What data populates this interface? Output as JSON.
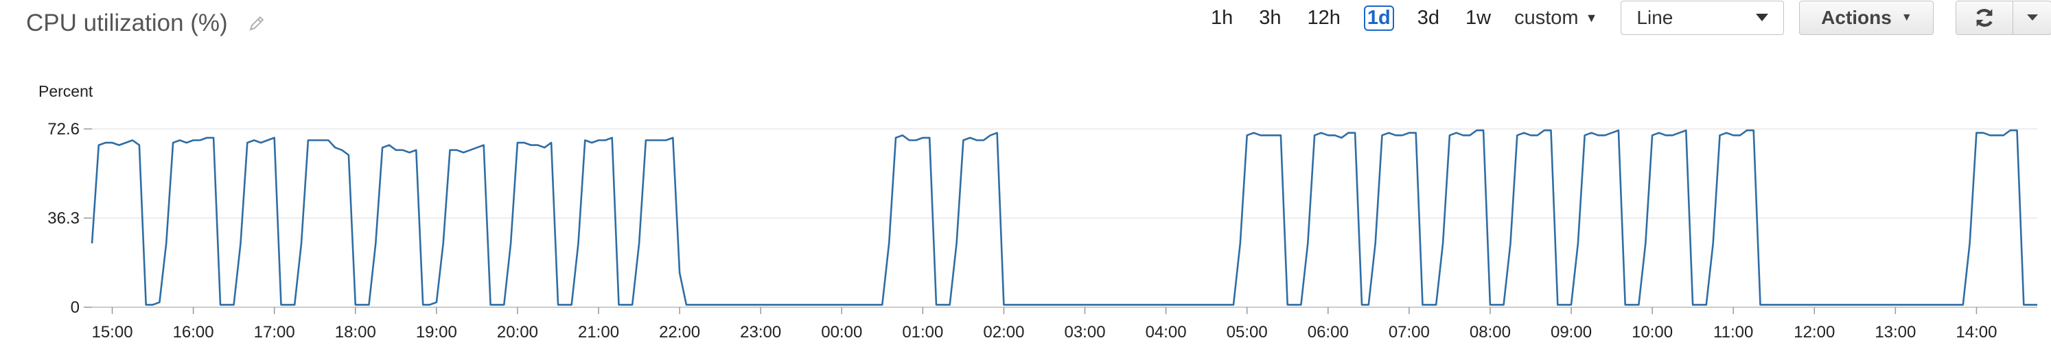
{
  "header": {
    "title": "CPU utilization (%)",
    "edit_icon": "pencil-icon"
  },
  "toolbar": {
    "ranges": [
      "1h",
      "3h",
      "12h",
      "1d",
      "3d",
      "1w"
    ],
    "active_range": "1d",
    "custom_label": "custom",
    "view_select_value": "Line",
    "actions_label": "Actions",
    "refresh_icon": "refresh-icon",
    "help_icon": "help-icon"
  },
  "colors": {
    "series": "#2e6da4",
    "active": "#1b66c9",
    "grid": "#e8e8e8"
  },
  "chart_data": {
    "type": "line",
    "ylabel": "Percent",
    "ylim": [
      0,
      72.6
    ],
    "yticks": [
      0,
      36.3,
      72.6
    ],
    "xlim": [
      0,
      1440
    ],
    "xticks": [
      {
        "x": 15,
        "label": "15:00"
      },
      {
        "x": 75,
        "label": "16:00"
      },
      {
        "x": 135,
        "label": "17:00"
      },
      {
        "x": 195,
        "label": "18:00"
      },
      {
        "x": 255,
        "label": "19:00"
      },
      {
        "x": 315,
        "label": "20:00"
      },
      {
        "x": 375,
        "label": "21:00"
      },
      {
        "x": 435,
        "label": "22:00"
      },
      {
        "x": 495,
        "label": "23:00"
      },
      {
        "x": 555,
        "label": "00:00"
      },
      {
        "x": 615,
        "label": "01:00"
      },
      {
        "x": 675,
        "label": "02:00"
      },
      {
        "x": 735,
        "label": "03:00"
      },
      {
        "x": 795,
        "label": "04:00"
      },
      {
        "x": 855,
        "label": "05:00"
      },
      {
        "x": 915,
        "label": "06:00"
      },
      {
        "x": 975,
        "label": "07:00"
      },
      {
        "x": 1035,
        "label": "08:00"
      },
      {
        "x": 1095,
        "label": "09:00"
      },
      {
        "x": 1155,
        "label": "10:00"
      },
      {
        "x": 1215,
        "label": "11:00"
      },
      {
        "x": 1275,
        "label": "12:00"
      },
      {
        "x": 1335,
        "label": "13:00"
      },
      {
        "x": 1395,
        "label": "14:00"
      }
    ],
    "grid": true,
    "series": [
      {
        "x": [
          0,
          5,
          10,
          15,
          20,
          25,
          30,
          35,
          40,
          45,
          50,
          55,
          60,
          65,
          70,
          75,
          80,
          85,
          90,
          95,
          100,
          105,
          110,
          115,
          120,
          125,
          130,
          135,
          140,
          145,
          150,
          155,
          160,
          165,
          170,
          175,
          180,
          185,
          190,
          195,
          200,
          205,
          210,
          215,
          220,
          225,
          230,
          235,
          240,
          245,
          250,
          255,
          260,
          265,
          270,
          275,
          280,
          285,
          290,
          295,
          300,
          305,
          310,
          315,
          320,
          325,
          330,
          335,
          340,
          345,
          350,
          355,
          360,
          365,
          370,
          375,
          380,
          385,
          390,
          395,
          400,
          405,
          410,
          415,
          420,
          425,
          430,
          435,
          440,
          445,
          450,
          455,
          460,
          465,
          470,
          475,
          480,
          485,
          490,
          495,
          500,
          505,
          510,
          515,
          520,
          525,
          530,
          535,
          540,
          545,
          550,
          555,
          560,
          565,
          570,
          575,
          580,
          585,
          590,
          595,
          600,
          605,
          610,
          615,
          620,
          625,
          630,
          635,
          640,
          645,
          650,
          655,
          660,
          665,
          670,
          675,
          680,
          685,
          690,
          695,
          700,
          705,
          710,
          715,
          720,
          725,
          730,
          735,
          740,
          745,
          750,
          755,
          760,
          765,
          770,
          775,
          780,
          785,
          790,
          795,
          800,
          805,
          810,
          815,
          820,
          825,
          830,
          835,
          840,
          845,
          850,
          855,
          860,
          865,
          870,
          875,
          880,
          885,
          890,
          895,
          900,
          905,
          910,
          915,
          920,
          925,
          930,
          935,
          940,
          945,
          950,
          955,
          960,
          965,
          970,
          975,
          980,
          985,
          990,
          995,
          1000,
          1005,
          1010,
          1015,
          1020,
          1025,
          1030,
          1035,
          1040,
          1045,
          1050,
          1055,
          1060,
          1065,
          1070,
          1075,
          1080,
          1085,
          1090,
          1095,
          1100,
          1105,
          1110,
          1115,
          1120,
          1125,
          1130,
          1135,
          1140,
          1145,
          1150,
          1155,
          1160,
          1165,
          1170,
          1175,
          1180,
          1185,
          1190,
          1195,
          1200,
          1205,
          1210,
          1215,
          1220,
          1225,
          1230,
          1235,
          1240,
          1245,
          1250,
          1255,
          1260,
          1265,
          1270,
          1275,
          1280,
          1285,
          1290,
          1295,
          1300,
          1305,
          1310,
          1315,
          1320,
          1325,
          1330,
          1335,
          1340,
          1345,
          1350,
          1355,
          1360,
          1365,
          1370,
          1375,
          1380,
          1385,
          1390,
          1395,
          1400,
          1405,
          1410,
          1415,
          1420,
          1425,
          1430,
          1435,
          1440
        ],
        "y": [
          26,
          66,
          67,
          67,
          66,
          67,
          68,
          66,
          1,
          1,
          2,
          26,
          67,
          68,
          67,
          68,
          68,
          69,
          69,
          1,
          1,
          1,
          26,
          67,
          68,
          67,
          68,
          69,
          1,
          1,
          1,
          26,
          68,
          68,
          68,
          68,
          65,
          64,
          62,
          1,
          1,
          1,
          26,
          65,
          66,
          64,
          64,
          63,
          64,
          1,
          1,
          2,
          26,
          64,
          64,
          63,
          64,
          65,
          66,
          1,
          1,
          1,
          26,
          67,
          67,
          66,
          66,
          65,
          67,
          1,
          1,
          1,
          26,
          68,
          67,
          68,
          68,
          69,
          1,
          1,
          1,
          26,
          68,
          68,
          68,
          68,
          69,
          14,
          1,
          1,
          1,
          1,
          1,
          1,
          1,
          1,
          1,
          1,
          1,
          1,
          1,
          1,
          1,
          1,
          1,
          1,
          1,
          1,
          1,
          1,
          1,
          1,
          1,
          1,
          1,
          1,
          1,
          1,
          26,
          69,
          70,
          68,
          68,
          69,
          69,
          1,
          1,
          1,
          26,
          68,
          69,
          68,
          68,
          70,
          71,
          1,
          1,
          1,
          1,
          1,
          1,
          1,
          1,
          1,
          1,
          1,
          1,
          1,
          1,
          1,
          1,
          1,
          1,
          1,
          1,
          1,
          1,
          1,
          1,
          1,
          1,
          1,
          1,
          1,
          1,
          1,
          1,
          1,
          1,
          1,
          26,
          70,
          71,
          70,
          70,
          70,
          70,
          1,
          1,
          1,
          26,
          70,
          71,
          70,
          70,
          69,
          71,
          71,
          1,
          1,
          26,
          70,
          71,
          70,
          70,
          71,
          71,
          1,
          1,
          1,
          26,
          70,
          71,
          70,
          70,
          72,
          72,
          1,
          1,
          1,
          26,
          70,
          71,
          70,
          70,
          72,
          72,
          1,
          1,
          1,
          26,
          70,
          71,
          70,
          70,
          71,
          72,
          1,
          1,
          1,
          26,
          70,
          71,
          70,
          70,
          71,
          72,
          1,
          1,
          1,
          26,
          70,
          71,
          70,
          70,
          72,
          72,
          1,
          1,
          1,
          1,
          1,
          1,
          1,
          1,
          1,
          1,
          1,
          1,
          1,
          1,
          1,
          1,
          1,
          1,
          1,
          1,
          1,
          1,
          1,
          1,
          1,
          1,
          1,
          1,
          1,
          1,
          1,
          26,
          71,
          71,
          70,
          70,
          70,
          72,
          72,
          1,
          1,
          1
        ]
      }
    ]
  }
}
